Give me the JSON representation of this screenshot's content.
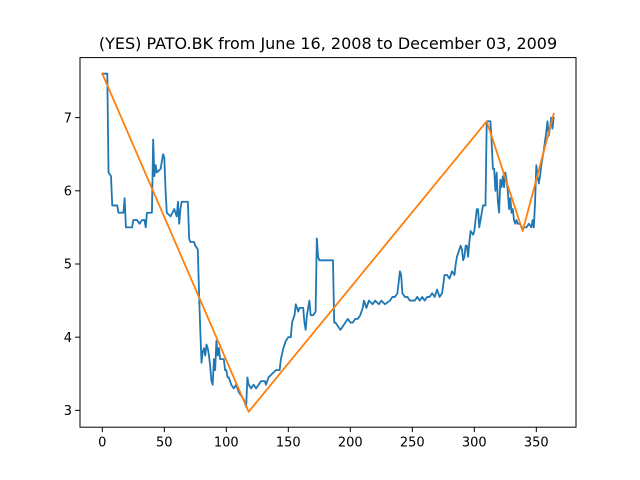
{
  "chart_data": {
    "type": "line",
    "title": "(YES) PATO.BK from June 16, 2008 to December 03, 2009",
    "xlabel": "",
    "ylabel": "",
    "xlim": [
      -18,
      382
    ],
    "ylim": [
      2.77,
      7.82
    ],
    "xticks": [
      0,
      50,
      100,
      150,
      200,
      250,
      300,
      350
    ],
    "yticks": [
      3,
      4,
      5,
      6,
      7
    ],
    "grid": false,
    "series": [
      {
        "color": "#1f77b4",
        "points": [
          [
            0,
            7.6
          ],
          [
            4,
            7.6
          ],
          [
            5,
            6.25
          ],
          [
            7,
            6.2
          ],
          [
            8,
            5.8
          ],
          [
            12,
            5.8
          ],
          [
            13,
            5.7
          ],
          [
            17,
            5.7
          ],
          [
            18,
            5.9
          ],
          [
            19,
            5.5
          ],
          [
            24,
            5.5
          ],
          [
            25,
            5.6
          ],
          [
            28,
            5.6
          ],
          [
            30,
            5.55
          ],
          [
            32,
            5.6
          ],
          [
            34,
            5.6
          ],
          [
            35,
            5.5
          ],
          [
            36,
            5.7
          ],
          [
            40,
            5.7
          ],
          [
            41,
            6.7
          ],
          [
            42,
            6.2
          ],
          [
            43,
            6.35
          ],
          [
            44,
            6.25
          ],
          [
            47,
            6.3
          ],
          [
            49,
            6.5
          ],
          [
            50,
            6.45
          ],
          [
            51,
            6.0
          ],
          [
            52,
            5.7
          ],
          [
            55,
            5.65
          ],
          [
            58,
            5.75
          ],
          [
            60,
            5.65
          ],
          [
            61,
            5.85
          ],
          [
            62,
            5.55
          ],
          [
            63,
            5.75
          ],
          [
            64,
            5.85
          ],
          [
            69,
            5.85
          ],
          [
            70,
            5.35
          ],
          [
            71,
            5.3
          ],
          [
            74,
            5.3
          ],
          [
            75,
            5.25
          ],
          [
            77,
            5.2
          ],
          [
            78,
            4.6
          ],
          [
            79,
            4.1
          ],
          [
            80,
            3.65
          ],
          [
            81,
            3.8
          ],
          [
            82,
            3.85
          ],
          [
            83,
            3.75
          ],
          [
            84,
            3.9
          ],
          [
            85,
            3.85
          ],
          [
            86,
            3.75
          ],
          [
            87,
            3.6
          ],
          [
            88,
            3.4
          ],
          [
            89,
            3.35
          ],
          [
            90,
            3.7
          ],
          [
            91,
            3.55
          ],
          [
            92,
            3.95
          ],
          [
            93,
            3.75
          ],
          [
            94,
            3.85
          ],
          [
            95,
            3.7
          ],
          [
            98,
            3.7
          ],
          [
            99,
            3.55
          ],
          [
            100,
            3.55
          ],
          [
            101,
            3.45
          ],
          [
            102,
            3.45
          ],
          [
            104,
            3.35
          ],
          [
            106,
            3.3
          ],
          [
            108,
            3.35
          ],
          [
            110,
            3.25
          ],
          [
            112,
            3.2
          ],
          [
            114,
            3.15
          ],
          [
            116,
            3.05
          ],
          [
            117,
            3.45
          ],
          [
            118,
            3.35
          ],
          [
            120,
            3.3
          ],
          [
            122,
            3.35
          ],
          [
            124,
            3.3
          ],
          [
            126,
            3.35
          ],
          [
            128,
            3.4
          ],
          [
            131,
            3.4
          ],
          [
            132,
            3.35
          ],
          [
            134,
            3.45
          ],
          [
            137,
            3.5
          ],
          [
            140,
            3.55
          ],
          [
            143,
            3.55
          ],
          [
            144,
            3.7
          ],
          [
            146,
            3.85
          ],
          [
            148,
            3.95
          ],
          [
            150,
            4.0
          ],
          [
            152,
            4.0
          ],
          [
            153,
            4.2
          ],
          [
            155,
            4.3
          ],
          [
            156,
            4.45
          ],
          [
            157,
            4.4
          ],
          [
            158,
            4.35
          ],
          [
            159,
            4.4
          ],
          [
            160,
            4.4
          ],
          [
            162,
            4.4
          ],
          [
            163,
            4.2
          ],
          [
            164,
            4.1
          ],
          [
            165,
            4.3
          ],
          [
            166,
            4.4
          ],
          [
            167,
            4.5
          ],
          [
            168,
            4.3
          ],
          [
            170,
            4.3
          ],
          [
            172,
            4.35
          ],
          [
            173,
            5.35
          ],
          [
            174,
            5.1
          ],
          [
            175,
            5.05
          ],
          [
            186,
            5.05
          ],
          [
            187,
            4.2
          ],
          [
            188,
            4.2
          ],
          [
            190,
            4.15
          ],
          [
            192,
            4.1
          ],
          [
            194,
            4.15
          ],
          [
            196,
            4.2
          ],
          [
            198,
            4.25
          ],
          [
            200,
            4.2
          ],
          [
            202,
            4.2
          ],
          [
            204,
            4.25
          ],
          [
            206,
            4.25
          ],
          [
            208,
            4.3
          ],
          [
            210,
            4.4
          ],
          [
            211,
            4.5
          ],
          [
            213,
            4.4
          ],
          [
            215,
            4.5
          ],
          [
            218,
            4.45
          ],
          [
            220,
            4.5
          ],
          [
            223,
            4.45
          ],
          [
            225,
            4.5
          ],
          [
            228,
            4.45
          ],
          [
            232,
            4.5
          ],
          [
            234,
            4.55
          ],
          [
            236,
            4.55
          ],
          [
            238,
            4.6
          ],
          [
            240,
            4.9
          ],
          [
            241,
            4.85
          ],
          [
            242,
            4.6
          ],
          [
            244,
            4.55
          ],
          [
            246,
            4.55
          ],
          [
            248,
            4.5
          ],
          [
            252,
            4.5
          ],
          [
            254,
            4.55
          ],
          [
            256,
            4.5
          ],
          [
            258,
            4.55
          ],
          [
            260,
            4.5
          ],
          [
            262,
            4.55
          ],
          [
            264,
            4.55
          ],
          [
            266,
            4.6
          ],
          [
            268,
            4.55
          ],
          [
            270,
            4.65
          ],
          [
            272,
            4.55
          ],
          [
            274,
            4.6
          ],
          [
            276,
            4.85
          ],
          [
            278,
            4.85
          ],
          [
            280,
            4.8
          ],
          [
            282,
            4.9
          ],
          [
            284,
            4.85
          ],
          [
            285,
            5.0
          ],
          [
            286,
            5.1
          ],
          [
            288,
            5.2
          ],
          [
            289,
            5.25
          ],
          [
            290,
            5.2
          ],
          [
            291,
            5.05
          ],
          [
            292,
            5.1
          ],
          [
            293,
            5.25
          ],
          [
            294,
            5.25
          ],
          [
            295,
            5.1
          ],
          [
            296,
            5.3
          ],
          [
            297,
            5.45
          ],
          [
            299,
            5.4
          ],
          [
            300,
            5.45
          ],
          [
            301,
            5.6
          ],
          [
            302,
            5.75
          ],
          [
            303,
            5.75
          ],
          [
            304,
            5.5
          ],
          [
            306,
            5.7
          ],
          [
            307,
            5.8
          ],
          [
            309,
            5.8
          ],
          [
            310,
            6.95
          ],
          [
            313,
            6.95
          ],
          [
            314,
            6.65
          ],
          [
            315,
            6.3
          ],
          [
            316,
            6.3
          ],
          [
            317,
            6.0
          ],
          [
            318,
            6.25
          ],
          [
            319,
            5.85
          ],
          [
            320,
            5.7
          ],
          [
            321,
            6.15
          ],
          [
            322,
            6.05
          ],
          [
            323,
            6.2
          ],
          [
            324,
            6.05
          ],
          [
            325,
            6.25
          ],
          [
            326,
            6.15
          ],
          [
            327,
            6.0
          ],
          [
            328,
            5.75
          ],
          [
            329,
            5.9
          ],
          [
            330,
            5.7
          ],
          [
            331,
            5.75
          ],
          [
            332,
            5.6
          ],
          [
            333,
            5.55
          ],
          [
            334,
            5.6
          ],
          [
            335,
            5.55
          ],
          [
            337,
            5.55
          ],
          [
            338,
            5.5
          ],
          [
            340,
            5.5
          ],
          [
            342,
            5.5
          ],
          [
            344,
            5.55
          ],
          [
            346,
            5.5
          ],
          [
            347,
            5.6
          ],
          [
            348,
            5.5
          ],
          [
            349,
            5.85
          ],
          [
            350,
            6.35
          ],
          [
            351,
            6.2
          ],
          [
            352,
            6.1
          ],
          [
            353,
            6.2
          ],
          [
            354,
            6.35
          ],
          [
            356,
            6.55
          ],
          [
            358,
            6.8
          ],
          [
            359,
            6.95
          ],
          [
            360,
            6.75
          ],
          [
            361,
            6.85
          ],
          [
            362,
            7.0
          ],
          [
            363,
            6.85
          ],
          [
            364,
            7.0
          ]
        ]
      },
      {
        "color": "#ff7f0e",
        "points": [
          [
            0,
            7.6
          ],
          [
            118,
            2.98
          ],
          [
            310,
            6.95
          ],
          [
            339,
            5.45
          ],
          [
            364,
            7.05
          ]
        ]
      }
    ]
  }
}
